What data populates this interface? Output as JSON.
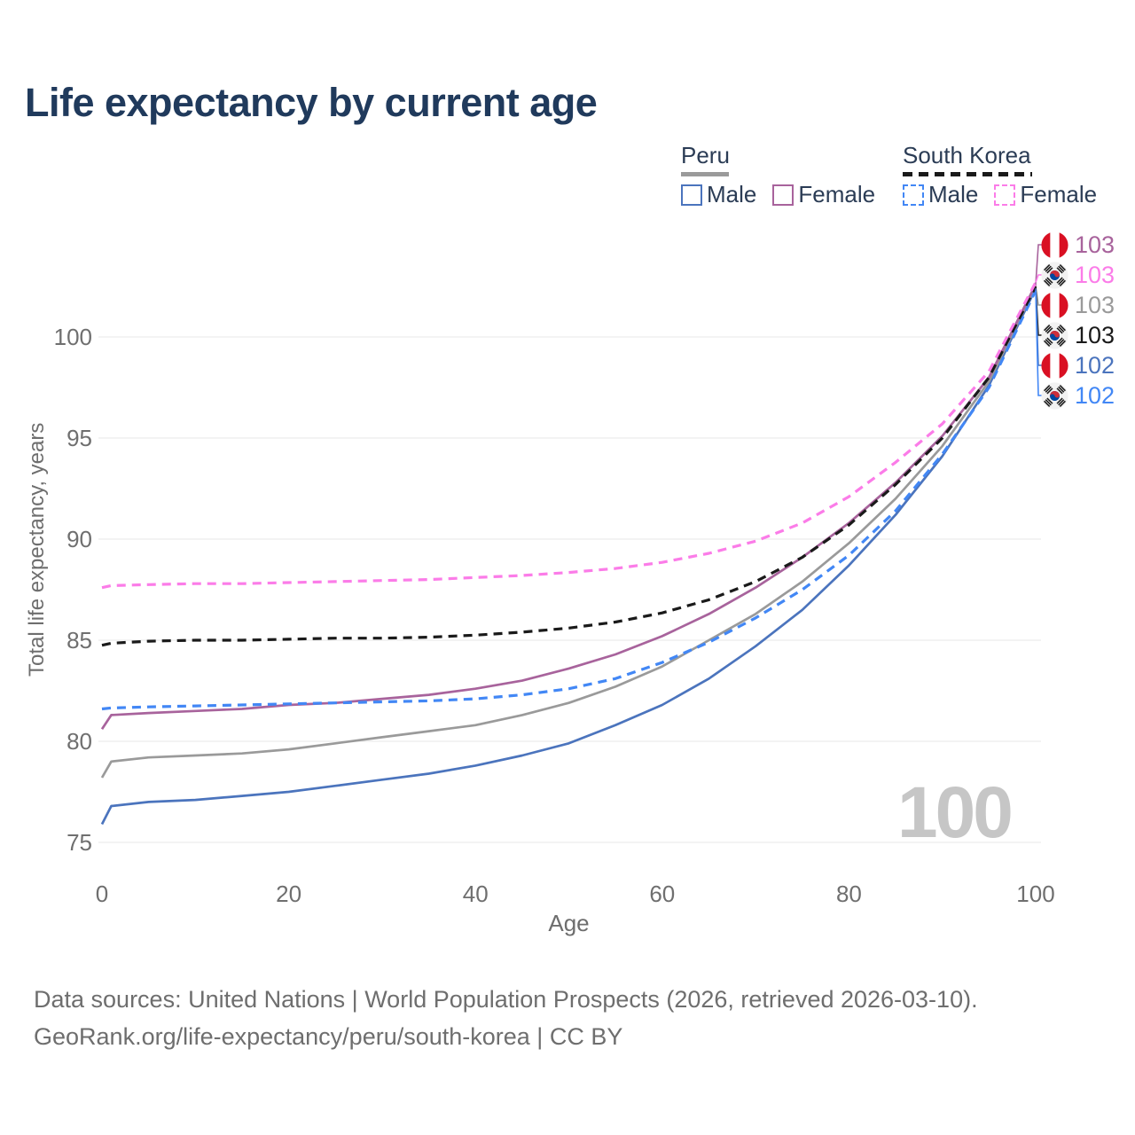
{
  "title": "Life expectancy by current age",
  "legend": {
    "peru": {
      "label": "Peru",
      "male": "Male",
      "female": "Female"
    },
    "south_korea": {
      "label": "South Korea",
      "male": "Male",
      "female": "Female"
    }
  },
  "watermark": {
    "text": "100"
  },
  "footer": {
    "line1": "Data sources: United Nations | World Population Prospects (2026, retrieved 2026-03-10).",
    "line2": "GeoRank.org/life-expectancy/peru/south-korea | CC BY"
  },
  "colors": {
    "peru_male": "#4b74bd",
    "peru_female": "#a8639c",
    "peru_all": "#9a9a9a",
    "sk_male": "#4287f5",
    "sk_all": "#1a1a1a",
    "sk_female": "#fb7ce8",
    "title_text": "#203a5c",
    "axis_text": "#6f6f6f",
    "gridline": "#ececec",
    "watermark": "#c6c6c6",
    "peru_flag_red": "#D91023",
    "korea_flag_red": "#CD2E3A",
    "korea_flag_blue": "#0047A0"
  },
  "end_labels": [
    {
      "flag": "peru",
      "value": "103",
      "color": "#a8639c",
      "series": "peru_female"
    },
    {
      "flag": "south-korea",
      "value": "103",
      "color": "#fb7ce8",
      "series": "sk_female"
    },
    {
      "flag": "peru",
      "value": "103",
      "color": "#9a9a9a",
      "series": "peru_all"
    },
    {
      "flag": "south-korea",
      "value": "103",
      "color": "#1a1a1a",
      "series": "sk_all"
    },
    {
      "flag": "peru",
      "value": "102",
      "color": "#4b74bd",
      "series": "peru_male"
    },
    {
      "flag": "south-korea",
      "value": "102",
      "color": "#4287f5",
      "series": "sk_male"
    }
  ],
  "chart_data": {
    "type": "line",
    "title": "Life expectancy by current age",
    "xlabel": "Age",
    "ylabel": "Total life expectancy, years",
    "xlim": [
      0,
      100
    ],
    "ylim": [
      75,
      103.5
    ],
    "xticks": [
      0,
      20,
      40,
      60,
      80,
      100
    ],
    "yticks": [
      75,
      80,
      85,
      90,
      95,
      100
    ],
    "grid": "horizontal",
    "legend_position": "top-right",
    "x": [
      0,
      1,
      5,
      10,
      15,
      20,
      25,
      30,
      35,
      40,
      45,
      50,
      55,
      60,
      65,
      70,
      75,
      80,
      85,
      90,
      95,
      100
    ],
    "series": [
      {
        "key": "peru_male",
        "name": "Peru Male",
        "color": "#4b74bd",
        "dash": false,
        "values": [
          75.9,
          76.8,
          77.0,
          77.1,
          77.3,
          77.5,
          77.8,
          78.1,
          78.4,
          78.8,
          79.3,
          79.9,
          80.8,
          81.8,
          83.1,
          84.7,
          86.5,
          88.7,
          91.2,
          94.1,
          97.6,
          102.4
        ]
      },
      {
        "key": "peru_all",
        "name": "Peru Both sexes",
        "color": "#9a9a9a",
        "dash": false,
        "values": [
          78.2,
          79.0,
          79.2,
          79.3,
          79.4,
          79.6,
          79.9,
          80.2,
          80.5,
          80.8,
          81.3,
          81.9,
          82.7,
          83.7,
          85.0,
          86.3,
          87.9,
          89.8,
          92.0,
          94.6,
          97.8,
          102.5
        ]
      },
      {
        "key": "peru_female",
        "name": "Peru Female",
        "color": "#a8639c",
        "dash": false,
        "values": [
          80.6,
          81.3,
          81.4,
          81.5,
          81.6,
          81.8,
          81.9,
          82.1,
          82.3,
          82.6,
          83.0,
          83.6,
          84.3,
          85.2,
          86.3,
          87.6,
          89.1,
          90.8,
          92.8,
          95.1,
          98.0,
          102.6
        ]
      },
      {
        "key": "sk_male",
        "name": "South Korea Male",
        "color": "#4287f5",
        "dash": true,
        "values": [
          81.6,
          81.65,
          81.7,
          81.75,
          81.8,
          81.85,
          81.9,
          81.95,
          82.0,
          82.1,
          82.3,
          82.6,
          83.1,
          83.9,
          84.9,
          86.1,
          87.5,
          89.2,
          91.4,
          94.2,
          97.5,
          102.3
        ]
      },
      {
        "key": "sk_all",
        "name": "South Korea Both sexes",
        "color": "#1a1a1a",
        "dash": true,
        "values": [
          84.75,
          84.85,
          84.95,
          85.0,
          85.0,
          85.05,
          85.1,
          85.1,
          85.15,
          85.25,
          85.4,
          85.6,
          85.9,
          86.35,
          87.0,
          87.9,
          89.1,
          90.7,
          92.7,
          95.0,
          98.0,
          102.5
        ]
      },
      {
        "key": "sk_female",
        "name": "South Korea Female",
        "color": "#fb7ce8",
        "dash": true,
        "values": [
          87.6,
          87.7,
          87.75,
          87.8,
          87.8,
          87.85,
          87.9,
          87.95,
          88.0,
          88.1,
          88.2,
          88.35,
          88.55,
          88.85,
          89.3,
          89.9,
          90.8,
          92.1,
          93.8,
          95.7,
          98.3,
          102.7
        ]
      }
    ]
  }
}
